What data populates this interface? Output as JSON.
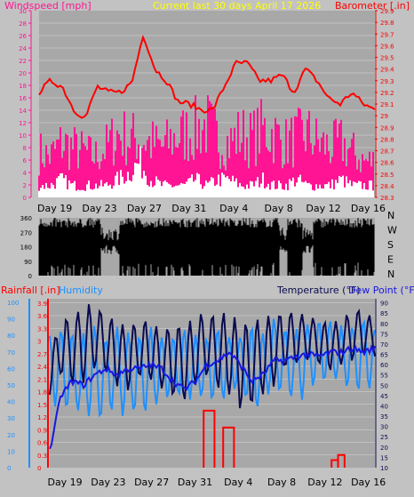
{
  "header": {
    "left_label": "Windspeed [mph]",
    "title": "Current last 30 days April 17 2026",
    "right_label": "Barometer [.in]"
  },
  "colors": {
    "background": "#c2c2c2",
    "plot_background": "#a8a8a8",
    "grid": "#d8d8d8",
    "windspeed": "#ff1493",
    "windgust": "#ffffff",
    "barometer": "#ff0000",
    "direction": "#000000",
    "rainfall": "#ff0000",
    "humidity": "#1e90ff",
    "temperature": "#0a0a50",
    "dewpoint": "#1818e0",
    "title_text": "#ffff00"
  },
  "x_axis": {
    "tick_labels": [
      "Day 19",
      "Day 23",
      "Day 27",
      "Day 31",
      "Day 4",
      "Day 8",
      "Day 12",
      "Day 16"
    ]
  },
  "direction_panel": {
    "left_ticks": [
      "360",
      "270",
      "180",
      "90",
      "0"
    ],
    "right_labels": [
      "N",
      "W",
      "S",
      "E",
      "N"
    ]
  },
  "bottom_panel": {
    "rainfall_label": "Rainfall [.in]",
    "humidity_label": "Humidity",
    "temperature_label": "Temperature (°F)",
    "dewpoint_label": "Dew Point (°F)"
  },
  "chart_data": [
    {
      "type": "line",
      "panel": "wind-barometer",
      "x_labels": [
        "Day 19",
        "Day 23",
        "Day 27",
        "Day 31",
        "Day 4",
        "Day 8",
        "Day 12",
        "Day 16"
      ],
      "y_left": {
        "label": "Windspeed [mph]",
        "range": [
          0,
          30
        ],
        "ticks": [
          0,
          2,
          4,
          6,
          8,
          10,
          12,
          14,
          16,
          18,
          20,
          22,
          24,
          26,
          28,
          30
        ]
      },
      "y_right": {
        "label": "Barometer [.in]",
        "range": [
          28.3,
          29.9
        ],
        "ticks": [
          "28.3",
          "28.4",
          "28.5",
          "28.6",
          "28.7",
          "28.8",
          "28.9",
          "29",
          "29.1",
          "29.2",
          "29.3",
          "29.4",
          "29.5",
          "29.6",
          "29.7",
          "29.8",
          "29.9"
        ]
      },
      "series": [
        {
          "name": "Barometer",
          "axis": "right",
          "day": [
            0,
            1,
            2,
            3,
            4,
            5,
            6,
            7,
            8,
            9,
            10,
            11,
            12,
            13,
            14,
            15,
            16,
            17,
            18,
            19,
            20,
            21,
            22,
            23,
            24,
            25,
            26,
            27,
            28,
            29
          ],
          "values": [
            29.2,
            29.3,
            29.25,
            29.05,
            28.98,
            29.25,
            29.2,
            29.2,
            29.28,
            29.7,
            29.4,
            29.3,
            29.12,
            29.1,
            29.05,
            29.05,
            29.25,
            29.45,
            29.45,
            29.3,
            29.3,
            29.35,
            29.2,
            29.4,
            29.3,
            29.15,
            29.1,
            29.2,
            29.1,
            29.05
          ]
        },
        {
          "name": "Windspeed",
          "axis": "left",
          "day": [
            0,
            1,
            2,
            3,
            4,
            5,
            6,
            7,
            8,
            9,
            10,
            11,
            12,
            13,
            14,
            15,
            16,
            17,
            18,
            19,
            20,
            21,
            22,
            23,
            24,
            25,
            26,
            27,
            28,
            29
          ],
          "values": [
            10,
            9,
            12,
            11,
            10,
            9,
            11,
            14,
            13,
            13,
            12,
            11,
            13,
            14,
            15,
            16,
            13,
            12,
            14,
            13,
            15,
            14,
            12,
            13,
            14,
            12,
            11,
            12,
            10,
            8
          ]
        },
        {
          "name": "Windgust",
          "axis": "left",
          "day": [
            0,
            1,
            2,
            3,
            4,
            5,
            6,
            7,
            8,
            9,
            10,
            11,
            12,
            13,
            14,
            15,
            16,
            17,
            18,
            19,
            20,
            21,
            22,
            23,
            24,
            25,
            26,
            27,
            28,
            29
          ],
          "values": [
            2,
            2,
            3,
            2,
            2,
            2,
            2,
            3,
            4,
            6,
            3,
            2,
            2,
            2,
            3,
            2,
            3,
            3,
            2,
            2,
            3,
            2,
            2,
            3,
            2,
            2,
            2,
            3,
            2,
            2
          ]
        }
      ]
    },
    {
      "type": "bar",
      "panel": "wind-direction",
      "y_range": [
        0,
        360
      ],
      "ticks": [
        0,
        90,
        180,
        270,
        360
      ],
      "series": [
        {
          "name": "Wind direction",
          "values_range": [
            0,
            360
          ]
        }
      ]
    },
    {
      "type": "line",
      "panel": "rain-humidity-temperature",
      "x_labels": [
        "Day 19",
        "Day 23",
        "Day 27",
        "Day 31",
        "Day 4",
        "Day 8",
        "Day 12",
        "Day 16"
      ],
      "y_left_outer": {
        "label": "Humidity",
        "range": [
          0,
          100
        ],
        "ticks": [
          0,
          10,
          20,
          30,
          40,
          50,
          60,
          70,
          80,
          90,
          100
        ]
      },
      "y_left_inner": {
        "label": "Rainfall [.in]",
        "range": [
          0,
          4.0
        ],
        "ticks": [
          "0",
          "0.3",
          "0.6",
          "0.9",
          "1.2",
          "1.5",
          "1.8",
          "2.1",
          "2.4",
          "2.7",
          "3",
          "3.3",
          "3.6",
          "3.9"
        ]
      },
      "y_right": {
        "label": "Temperature (°F)",
        "range": [
          10,
          92
        ],
        "ticks": [
          10,
          15,
          20,
          25,
          30,
          35,
          40,
          45,
          50,
          55,
          60,
          65,
          70,
          75,
          80,
          85,
          90
        ]
      },
      "series": [
        {
          "name": "Temperature",
          "axis": "right",
          "daily_min": [
            45,
            55,
            50,
            52,
            58,
            56,
            50,
            48,
            54,
            52,
            48,
            45,
            42,
            50,
            55,
            48,
            45,
            38,
            40,
            45,
            50,
            58,
            60,
            62,
            60,
            58,
            60,
            62,
            64,
            65
          ],
          "daily_max": [
            68,
            80,
            85,
            88,
            90,
            85,
            80,
            78,
            82,
            80,
            76,
            80,
            78,
            84,
            85,
            84,
            85,
            82,
            80,
            83,
            84,
            86,
            85,
            84,
            82,
            80,
            82,
            86,
            88,
            80
          ]
        },
        {
          "name": "Dew Point",
          "axis": "right",
          "day": [
            0,
            1,
            2,
            3,
            4,
            5,
            6,
            7,
            8,
            9,
            10,
            11,
            12,
            13,
            14,
            15,
            16,
            17,
            18,
            19,
            20,
            21,
            22,
            23,
            24,
            25,
            26,
            27,
            28,
            29
          ],
          "values": [
            18,
            45,
            52,
            50,
            55,
            58,
            55,
            58,
            58,
            60,
            58,
            52,
            48,
            52,
            60,
            62,
            66,
            60,
            52,
            55,
            62,
            62,
            64,
            65,
            64,
            66,
            66,
            68,
            66,
            68
          ]
        },
        {
          "name": "Humidity",
          "axis": "left_outer",
          "daily_min": [
            40,
            35,
            35,
            30,
            30,
            30,
            35,
            30,
            35,
            35,
            40,
            45,
            40,
            45,
            40,
            40,
            45,
            50,
            35,
            40,
            45,
            45,
            40,
            45,
            50,
            55,
            50,
            50,
            45,
            50
          ],
          "daily_max": [
            80,
            85,
            80,
            80,
            85,
            80,
            85,
            80,
            80,
            85,
            80,
            80,
            85,
            80,
            80,
            85,
            80,
            80,
            85,
            80,
            90,
            85,
            85,
            88,
            90,
            90,
            85,
            85,
            90,
            85
          ]
        },
        {
          "name": "Rainfall",
          "axis": "left_inner",
          "events": [
            {
              "start_day": 14.2,
              "end_day": 15.2,
              "value": 1.35
            },
            {
              "start_day": 16.0,
              "end_day": 17.0,
              "value": 0.95
            },
            {
              "start_day": 26.0,
              "end_day": 26.6,
              "value": 0.18
            },
            {
              "start_day": 26.6,
              "end_day": 27.2,
              "value": 0.3
            }
          ]
        }
      ]
    }
  ]
}
